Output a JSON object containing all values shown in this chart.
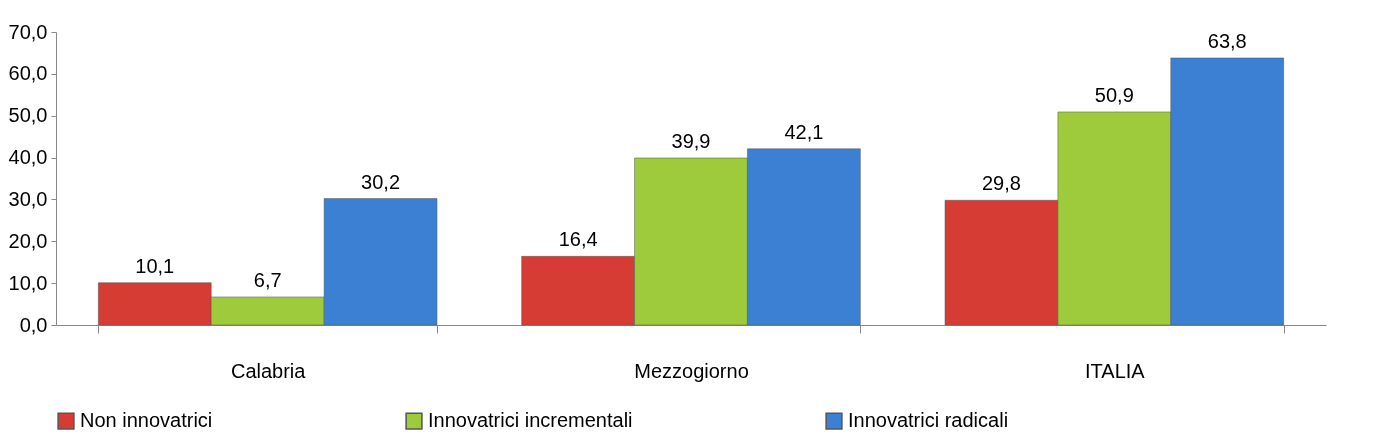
{
  "chart_data": {
    "type": "bar",
    "categories": [
      "Calabria",
      "Mezzogiorno",
      "ITALIA"
    ],
    "series": [
      {
        "name": "Non innovatrici",
        "color": "#d63c34",
        "values": [
          10.1,
          16.4,
          29.8
        ],
        "value_labels": [
          "10,1",
          "16,4",
          "29,8"
        ]
      },
      {
        "name": "Innovatrici incrementali",
        "color": "#9dcb3c",
        "values": [
          6.7,
          39.9,
          50.9
        ],
        "value_labels": [
          "6,7",
          "39,9",
          "50,9"
        ]
      },
      {
        "name": "Innovatrici radicali",
        "color": "#3b80d2",
        "values": [
          30.2,
          42.1,
          63.8
        ],
        "value_labels": [
          "30,2",
          "42,1",
          "63,8"
        ]
      }
    ],
    "ylim": [
      0,
      70
    ],
    "yticks": [
      {
        "value": 0,
        "label": "0,0"
      },
      {
        "value": 10,
        "label": "10,0"
      },
      {
        "value": 20,
        "label": "20,0"
      },
      {
        "value": 30,
        "label": "30,0"
      },
      {
        "value": 40,
        "label": "40,0"
      },
      {
        "value": 50,
        "label": "50,0"
      },
      {
        "value": 60,
        "label": "60,0"
      },
      {
        "value": 70,
        "label": "70,0"
      }
    ],
    "grid": false,
    "legend": "bottom"
  }
}
